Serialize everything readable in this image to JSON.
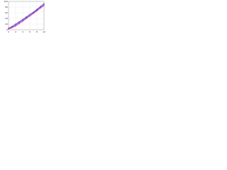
{
  "chart_data": {
    "type": "line",
    "x": [
      0,
      1,
      2,
      3,
      4,
      5,
      6,
      7,
      8,
      9,
      10
    ],
    "series": [
      {
        "color": "#3b4cc0",
        "values": [
          5,
          12,
          20,
          28,
          36,
          45,
          54,
          62,
          72,
          82,
          92
        ]
      },
      {
        "color": "#7b3fbf",
        "values": [
          3,
          9,
          16,
          25,
          33,
          42,
          50,
          60,
          69,
          79,
          88
        ]
      },
      {
        "color": "#e040c0",
        "values": [
          2,
          7,
          13,
          21,
          30,
          39,
          48,
          57,
          66,
          76,
          85
        ]
      }
    ],
    "xlim": [
      0,
      10
    ],
    "xticks": [
      0,
      2,
      4,
      6,
      8,
      10
    ],
    "ylim": [
      0,
      100
    ],
    "yticks": [
      0,
      20,
      40,
      60,
      80,
      100
    ],
    "grid": true
  }
}
